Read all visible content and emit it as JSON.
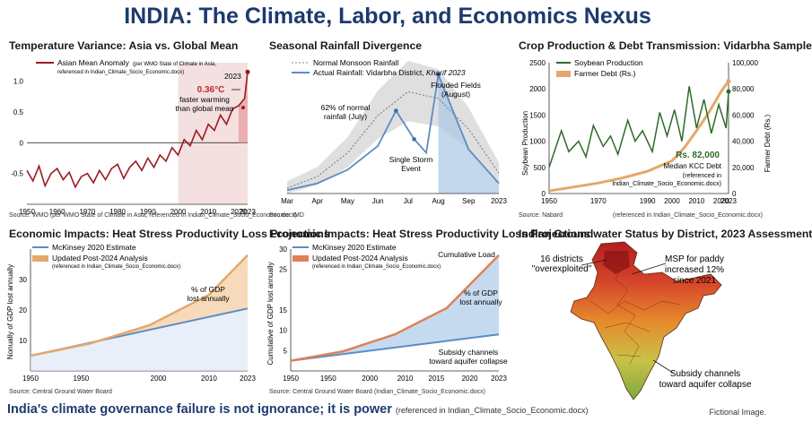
{
  "title": "INDIA: The Climate, Labor, and Economics Nexus",
  "footer": {
    "main": "India's climate governance failure is not ignorance; it is power",
    "ref": "(referenced in Indian_Climate_Socio_Economic.docx)",
    "note": "Fictional Image."
  },
  "colors": {
    "title": "#1d3a6e",
    "dark_red": "#9b1b22",
    "blue": "#5b8cc6",
    "green": "#2e6b2a",
    "orange": "#e5a86a"
  },
  "panels": {
    "p1": {
      "title": "Temperature Variance: Asia vs. Global Mean",
      "source": "Source: WMO (per WMO State of Climate in Asia, referenced in Indian_Climate_Socio_Economic.docx)",
      "legend1": "Asian Mean Anomaly",
      "legend2": "(per WMO State of Climate in Asia,",
      "legend3": "referenced in Indian_Climate_Socio_Economic.docx)",
      "ann_year": "2023",
      "ann_value": "0.36°C",
      "ann_t1": "faster warming",
      "ann_t2": "than global mean"
    },
    "p2": {
      "title": "Seasonal Rainfall Divergence",
      "source": "Source: IMD",
      "legend1": "Normal Monsoon Rainfall",
      "legend2": "Actual Rainfall: Vidarbha District,",
      "legend2i": "Kharif 2023",
      "ann1a": "62% of normal",
      "ann1b": "rainfall (July)",
      "ann2a": "Single Storm",
      "ann2b": "Event",
      "ann3a": "Flooded Fields",
      "ann3b": "(August)"
    },
    "p3": {
      "title": "Crop Production & Debt Transmission: Vidarbha Sample",
      "source": "Source: Nabard",
      "source_right": "(referenced in Indian_Climate_Socio_Economic.docx)",
      "legend1": "Soybean Production",
      "legend2": "Farmer Debt (Rs.)",
      "ylabel_left": "Soybean Production",
      "ylabel_right": "Farmer Debt (Rs.)",
      "ann_value": "Rs. 82,000",
      "ann1": "Median KCC Debt",
      "ann2": "(referenced in",
      "ann3": "Indian_Climate_Socio_Economic.docx)"
    },
    "p4": {
      "title": "Economic Impacts: Heat Stress Productivity Loss Projections",
      "source": "Source: Central Ground Water Board",
      "legend1": "McKinsey 2020 Estimate",
      "legend2": "Updated Post-2024 Analysis",
      "legend3": "(referenced in Indian_Climate_Socio_Economic.docx)",
      "ylabel": "Nonually of GDP lost annually",
      "ann1": "% of GDP",
      "ann2": "lost annually"
    },
    "p5": {
      "title": "Economic Impacts: Heat Stress Productivity Loss Projections",
      "source": "Source: Central Ground Water Board (Indian_Climate_Socio_Economic.docx)",
      "legend1": "McKinsey 2020 Estimate",
      "legend2": "Updated Post-2024 Analysis",
      "legend3": "(referenced in Indian_Climate_Socio_Economic.docx)",
      "ylabel": "Cumulative of GDP lost annually",
      "ann_cum": "Cumulative Load",
      "ann1": "% of GDP",
      "ann2": "lost annually",
      "ann3": "Subsidy channels",
      "ann4": "toward aquifer collapse"
    },
    "p6": {
      "title": "Indian Groundwater Status by District, 2023 Assessment",
      "ann1a": "16 districts",
      "ann1b": "\"overexploited\"",
      "ann2a": "MSP for paddy",
      "ann2b": "increased 12%",
      "ann2c": "since 2021",
      "ann3a": "Subsidy channels",
      "ann3b": "toward aquifer collapse"
    }
  },
  "chart_data": [
    {
      "type": "area",
      "title": "Temperature Variance: Asia vs. Global Mean",
      "xlim": [
        1950,
        2023
      ],
      "ylim": [
        -1.0,
        1.3
      ],
      "x_ticks": [
        "1950",
        "1960",
        "1970",
        "1980",
        "1990",
        "2000",
        "2010",
        "2020",
        "2023"
      ],
      "y_ticks": [
        "1.0",
        "0.5",
        "0",
        "-0.5"
      ],
      "series": [
        {
          "name": "Asian Mean Anomaly",
          "x": [
            1950,
            1952,
            1954,
            1956,
            1958,
            1960,
            1962,
            1964,
            1966,
            1968,
            1970,
            1972,
            1974,
            1976,
            1978,
            1980,
            1982,
            1984,
            1986,
            1988,
            1990,
            1992,
            1994,
            1996,
            1998,
            2000,
            2002,
            2004,
            2006,
            2008,
            2010,
            2012,
            2014,
            2016,
            2018,
            2020,
            2022,
            2023
          ],
          "y": [
            -0.45,
            -0.62,
            -0.38,
            -0.7,
            -0.5,
            -0.42,
            -0.6,
            -0.48,
            -0.72,
            -0.55,
            -0.5,
            -0.65,
            -0.45,
            -0.6,
            -0.42,
            -0.35,
            -0.58,
            -0.4,
            -0.3,
            -0.45,
            -0.25,
            -0.4,
            -0.2,
            -0.3,
            -0.08,
            -0.2,
            0.05,
            -0.05,
            0.2,
            0.05,
            0.3,
            0.2,
            0.45,
            0.3,
            0.55,
            0.6,
            0.72,
            1.15
          ]
        }
      ]
    },
    {
      "type": "line",
      "title": "Seasonal Rainfall Divergence",
      "x_ticks": [
        "Mar",
        "Apr",
        "May",
        "Jun",
        "Jul",
        "Aug",
        "Sep",
        "2023"
      ],
      "series": [
        {
          "name": "Normal Monsoon Rainfall",
          "x": [
            0,
            1,
            2,
            3,
            4,
            5,
            6,
            7
          ],
          "y": [
            8,
            25,
            60,
            115,
            150,
            140,
            95,
            30
          ]
        },
        {
          "name": "Actual Rainfall: Vidarbha District, Kharif 2023",
          "x": [
            0,
            1,
            2,
            3,
            3.6,
            4.2,
            4.6,
            5.0,
            5.5,
            6,
            6.5,
            7
          ],
          "y": [
            5,
            15,
            35,
            70,
            122,
            80,
            60,
            175,
            120,
            65,
            40,
            15
          ]
        }
      ]
    },
    {
      "type": "line",
      "title": "Crop Production & Debt Transmission: Vidarbha Sample",
      "xlim": [
        1950,
        2023
      ],
      "y_left": [
        0,
        2500
      ],
      "y_right": [
        0,
        100000
      ],
      "x_ticks": [
        "1950",
        "1970",
        "1990",
        "2000",
        "2010",
        "2020",
        "2023"
      ],
      "y_left_ticks": [
        "2500",
        "2000",
        "1500",
        "1000",
        "500",
        "0"
      ],
      "y_right_ticks": [
        "100,000",
        "80,000",
        "60,000",
        "40,000",
        "20,000",
        "0"
      ],
      "series": [
        {
          "name": "Soybean Production",
          "x": [
            1950,
            1955,
            1958,
            1962,
            1965,
            1968,
            1972,
            1975,
            1978,
            1982,
            1985,
            1988,
            1992,
            1995,
            1998,
            2001,
            2004,
            2007,
            2010,
            2013,
            2016,
            2019,
            2022,
            2023
          ],
          "y": [
            500,
            1200,
            800,
            1000,
            700,
            1300,
            900,
            1100,
            750,
            1400,
            1000,
            1200,
            800,
            1550,
            1100,
            1600,
            1000,
            2050,
            1250,
            1800,
            1150,
            1700,
            1250,
            1950
          ]
        },
        {
          "name": "Farmer Debt (Rs.)",
          "x": [
            1950,
            1960,
            1970,
            1980,
            1990,
            2000,
            2005,
            2010,
            2015,
            2020,
            2023
          ],
          "y": [
            2000,
            5000,
            8000,
            12000,
            17000,
            25000,
            35000,
            48000,
            62000,
            78000,
            86000
          ]
        }
      ]
    },
    {
      "type": "area",
      "title": "Economic Impacts: Heat Stress Productivity Loss Projections",
      "xlim": [
        1950,
        2023
      ],
      "ylim": [
        0,
        40
      ],
      "x_ticks": [
        "1950",
        "1950",
        "2000",
        "2010",
        "2023"
      ],
      "y_ticks": [
        "30",
        "20",
        "10"
      ],
      "series": [
        {
          "name": "McKinsey 2020 Estimate",
          "x": [
            1950,
            2023
          ],
          "y": [
            5,
            20.5
          ]
        },
        {
          "name": "Updated Post-2024 Analysis",
          "x": [
            1950,
            1970,
            1990,
            2010,
            2023
          ],
          "y": [
            5,
            9,
            15,
            25,
            38
          ]
        }
      ]
    },
    {
      "type": "area",
      "title": "Economic Impacts: Heat Stress Productivity Loss Projections",
      "ylim": [
        0,
        30
      ],
      "x_ticks": [
        "1950",
        "1950",
        "2000",
        "2010",
        "2015",
        "2020",
        "2023"
      ],
      "y_ticks": [
        "30",
        "25",
        "15",
        "10",
        "5"
      ],
      "series": [
        {
          "name": "McKinsey 2020 Estimate",
          "x": [
            0,
            1
          ],
          "y": [
            2.5,
            9
          ]
        },
        {
          "name": "Updated Post-2024 Analysis",
          "x": [
            0,
            0.25,
            0.5,
            0.75,
            1
          ],
          "y": [
            2.5,
            4.8,
            9,
            15.5,
            28.5
          ]
        }
      ]
    }
  ]
}
